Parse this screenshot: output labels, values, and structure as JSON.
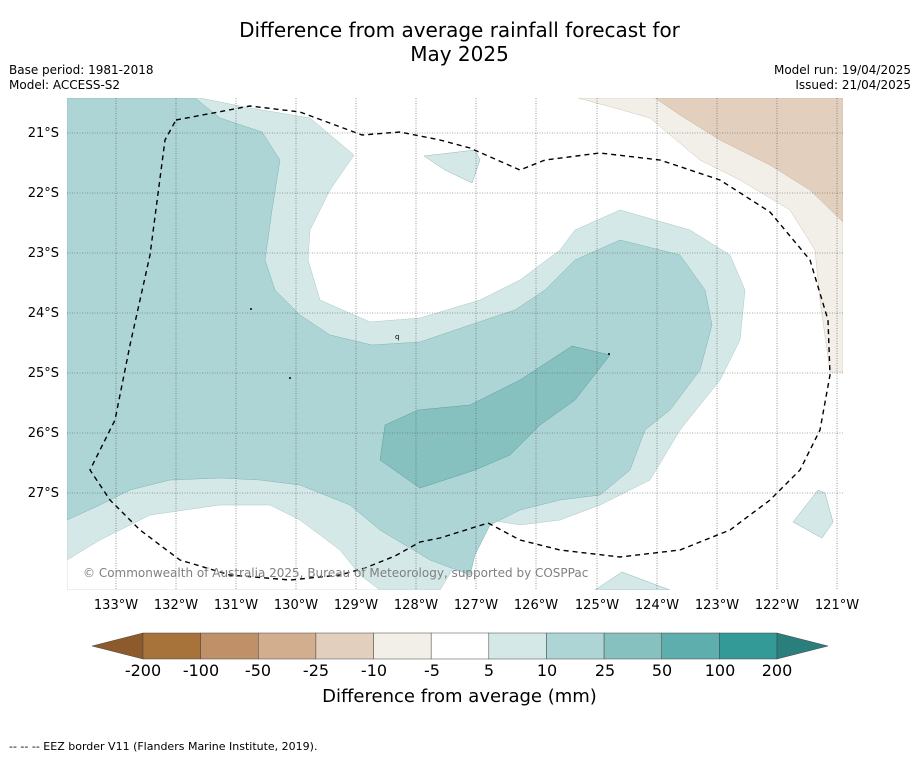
{
  "title_line1": "Difference from average rainfall forecast for",
  "title_line2": "May 2025",
  "meta_left": {
    "base_period": "Base period: 1981-2018",
    "model": "Model: ACCESS-S2"
  },
  "meta_right": {
    "model_run": "Model run: 19/04/2025",
    "issued": "Issued: 21/04/2025"
  },
  "map": {
    "lat_labels": [
      "21°S",
      "22°S",
      "23°S",
      "24°S",
      "25°S",
      "26°S",
      "27°S"
    ],
    "lon_labels": [
      "133°W",
      "132°W",
      "131°W",
      "130°W",
      "129°W",
      "128°W",
      "127°W",
      "126°W",
      "125°W",
      "124°W",
      "123°W",
      "122°W",
      "121°W"
    ],
    "copyright": "© Commonwealth of Australia 2025, Bureau of Meteorology, supported by COSPPac",
    "marker": "q"
  },
  "colorbar": {
    "labels": [
      "-200",
      "-100",
      "-50",
      "-25",
      "-10",
      "-5",
      "5",
      "10",
      "25",
      "50",
      "100",
      "200"
    ],
    "colors": [
      "#a8733a",
      "#c09068",
      "#d2ae8e",
      "#e3cfbd",
      "#f2eee8",
      "#ffffff",
      "#d4e8e7",
      "#aed5d6",
      "#86c1c0",
      "#5eaeae",
      "#339a98"
    ],
    "under_color": "#8c5a2b",
    "over_color": "#2a7f7c",
    "title": "Difference from average (mm)"
  },
  "footer": "--  --  -- EEZ border V11 (Flanders Marine Institute, 2019)."
}
